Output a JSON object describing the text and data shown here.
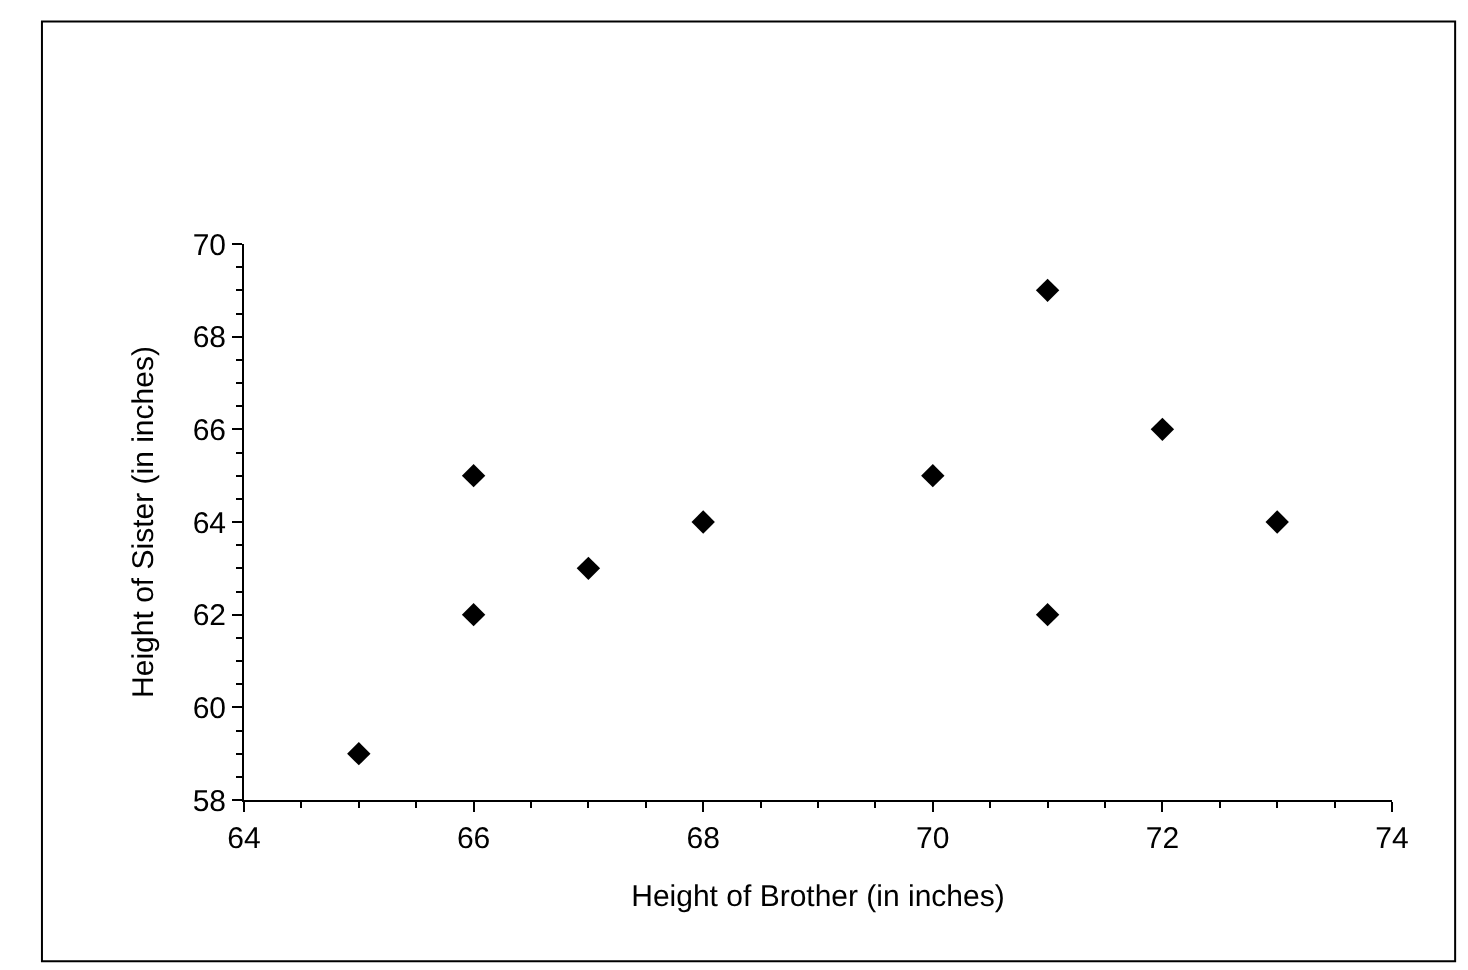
{
  "chart_data": {
    "type": "scatter",
    "xlabel": "Height of Brother (in inches)",
    "ylabel": "Height of Sister (in inches)",
    "x": [
      65,
      66,
      66,
      67,
      68,
      70,
      71,
      71,
      72,
      73
    ],
    "series": [
      {
        "color": "#000000",
        "values": [
          59,
          65,
          62,
          63,
          64,
          65,
          69,
          62,
          66,
          64
        ]
      }
    ],
    "xlim": [
      64,
      74
    ],
    "xticks": [
      64,
      66,
      68,
      70,
      72,
      74
    ],
    "ylim": [
      58,
      70
    ],
    "yticks": [
      58,
      60,
      62,
      64,
      66,
      68,
      70
    ],
    "grid": false,
    "legend": false,
    "marker": "diamond"
  }
}
